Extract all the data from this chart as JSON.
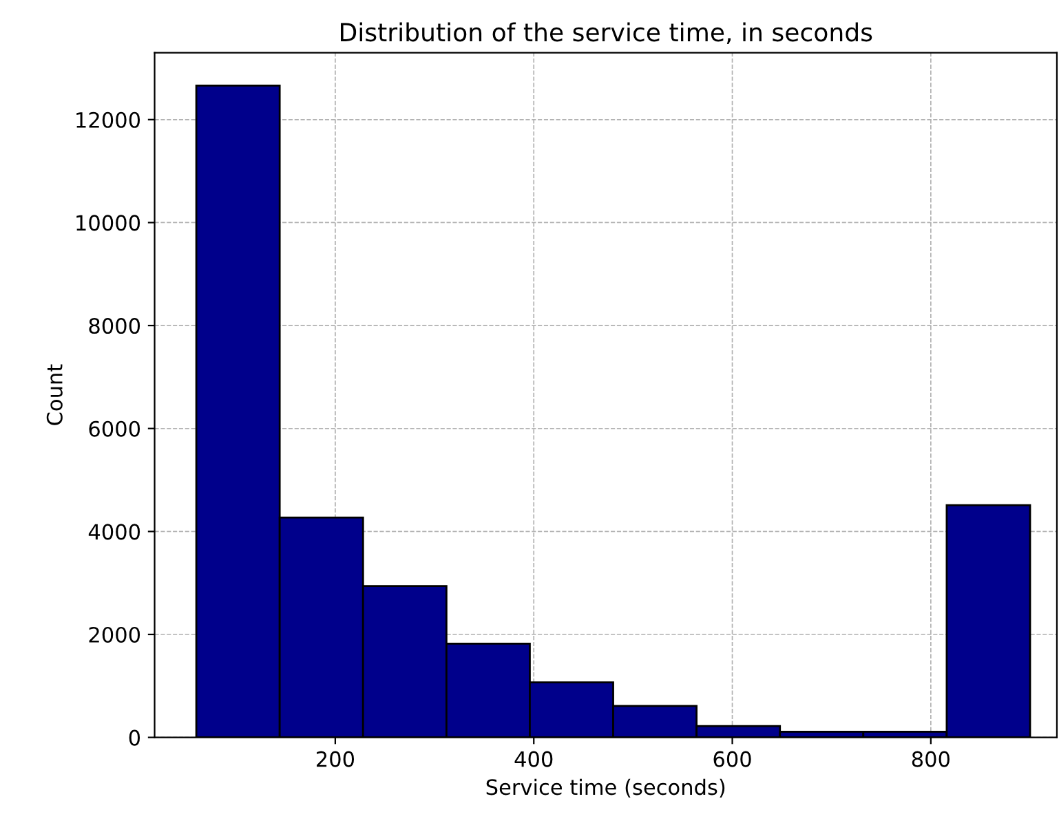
{
  "chart_data": {
    "type": "histogram",
    "title": "Distribution of the service time, in seconds",
    "xlabel": "Service time (seconds)",
    "ylabel": "Count",
    "bins": [
      60,
      144,
      228,
      312,
      396,
      480,
      564,
      648,
      732,
      816,
      900
    ],
    "values": [
      12660,
      4270,
      2940,
      1820,
      1070,
      610,
      220,
      110,
      110,
      4510
    ],
    "color": "#00008b",
    "xlim": [
      18,
      927
    ],
    "ylim": [
      0,
      13300
    ],
    "xticks": [
      200,
      400,
      600,
      800
    ],
    "yticks": [
      0,
      2000,
      4000,
      6000,
      8000,
      10000,
      12000
    ],
    "grid": true
  }
}
